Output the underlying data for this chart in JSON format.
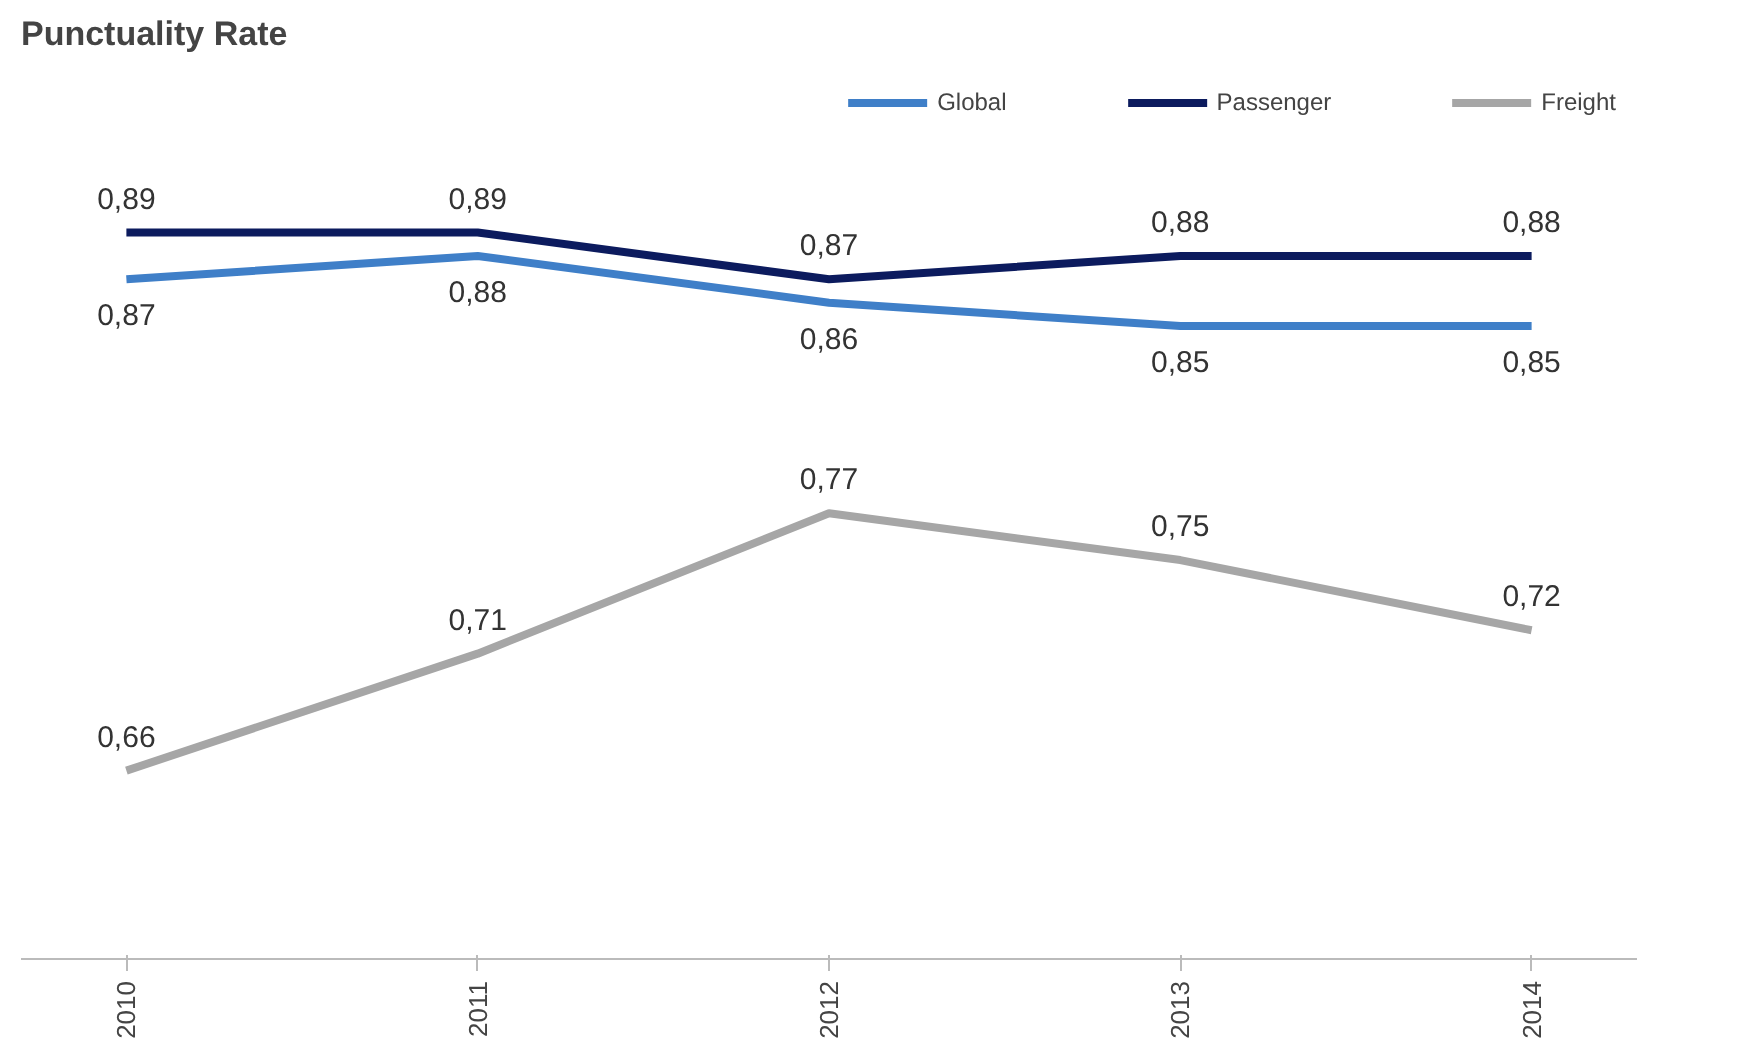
{
  "chart_data": {
    "type": "line",
    "title": "Punctuality Rate",
    "categories": [
      "2010",
      "2011",
      "2012",
      "2013",
      "2014"
    ],
    "series": [
      {
        "name": "Global",
        "color": "#3f7fc8",
        "values": [
          0.87,
          0.88,
          0.86,
          0.85,
          0.85
        ],
        "value_labels": [
          "0,87",
          "0,88",
          "0,86",
          "0,85",
          "0,85"
        ]
      },
      {
        "name": "Passenger",
        "color": "#0c1b5e",
        "values": [
          0.89,
          0.89,
          0.87,
          0.88,
          0.88
        ],
        "value_labels": [
          "0,89",
          "0,89",
          "0,87",
          "0,88",
          "0,88"
        ]
      },
      {
        "name": "Freight",
        "color": "#a6a6a6",
        "values": [
          0.66,
          0.71,
          0.77,
          0.75,
          0.72
        ],
        "value_labels": [
          "0,66",
          "0,71",
          "0,77",
          "0,75",
          "0,72"
        ]
      }
    ],
    "legend": "top right",
    "grid": false,
    "tick_labels": "x",
    "marker": "none"
  }
}
